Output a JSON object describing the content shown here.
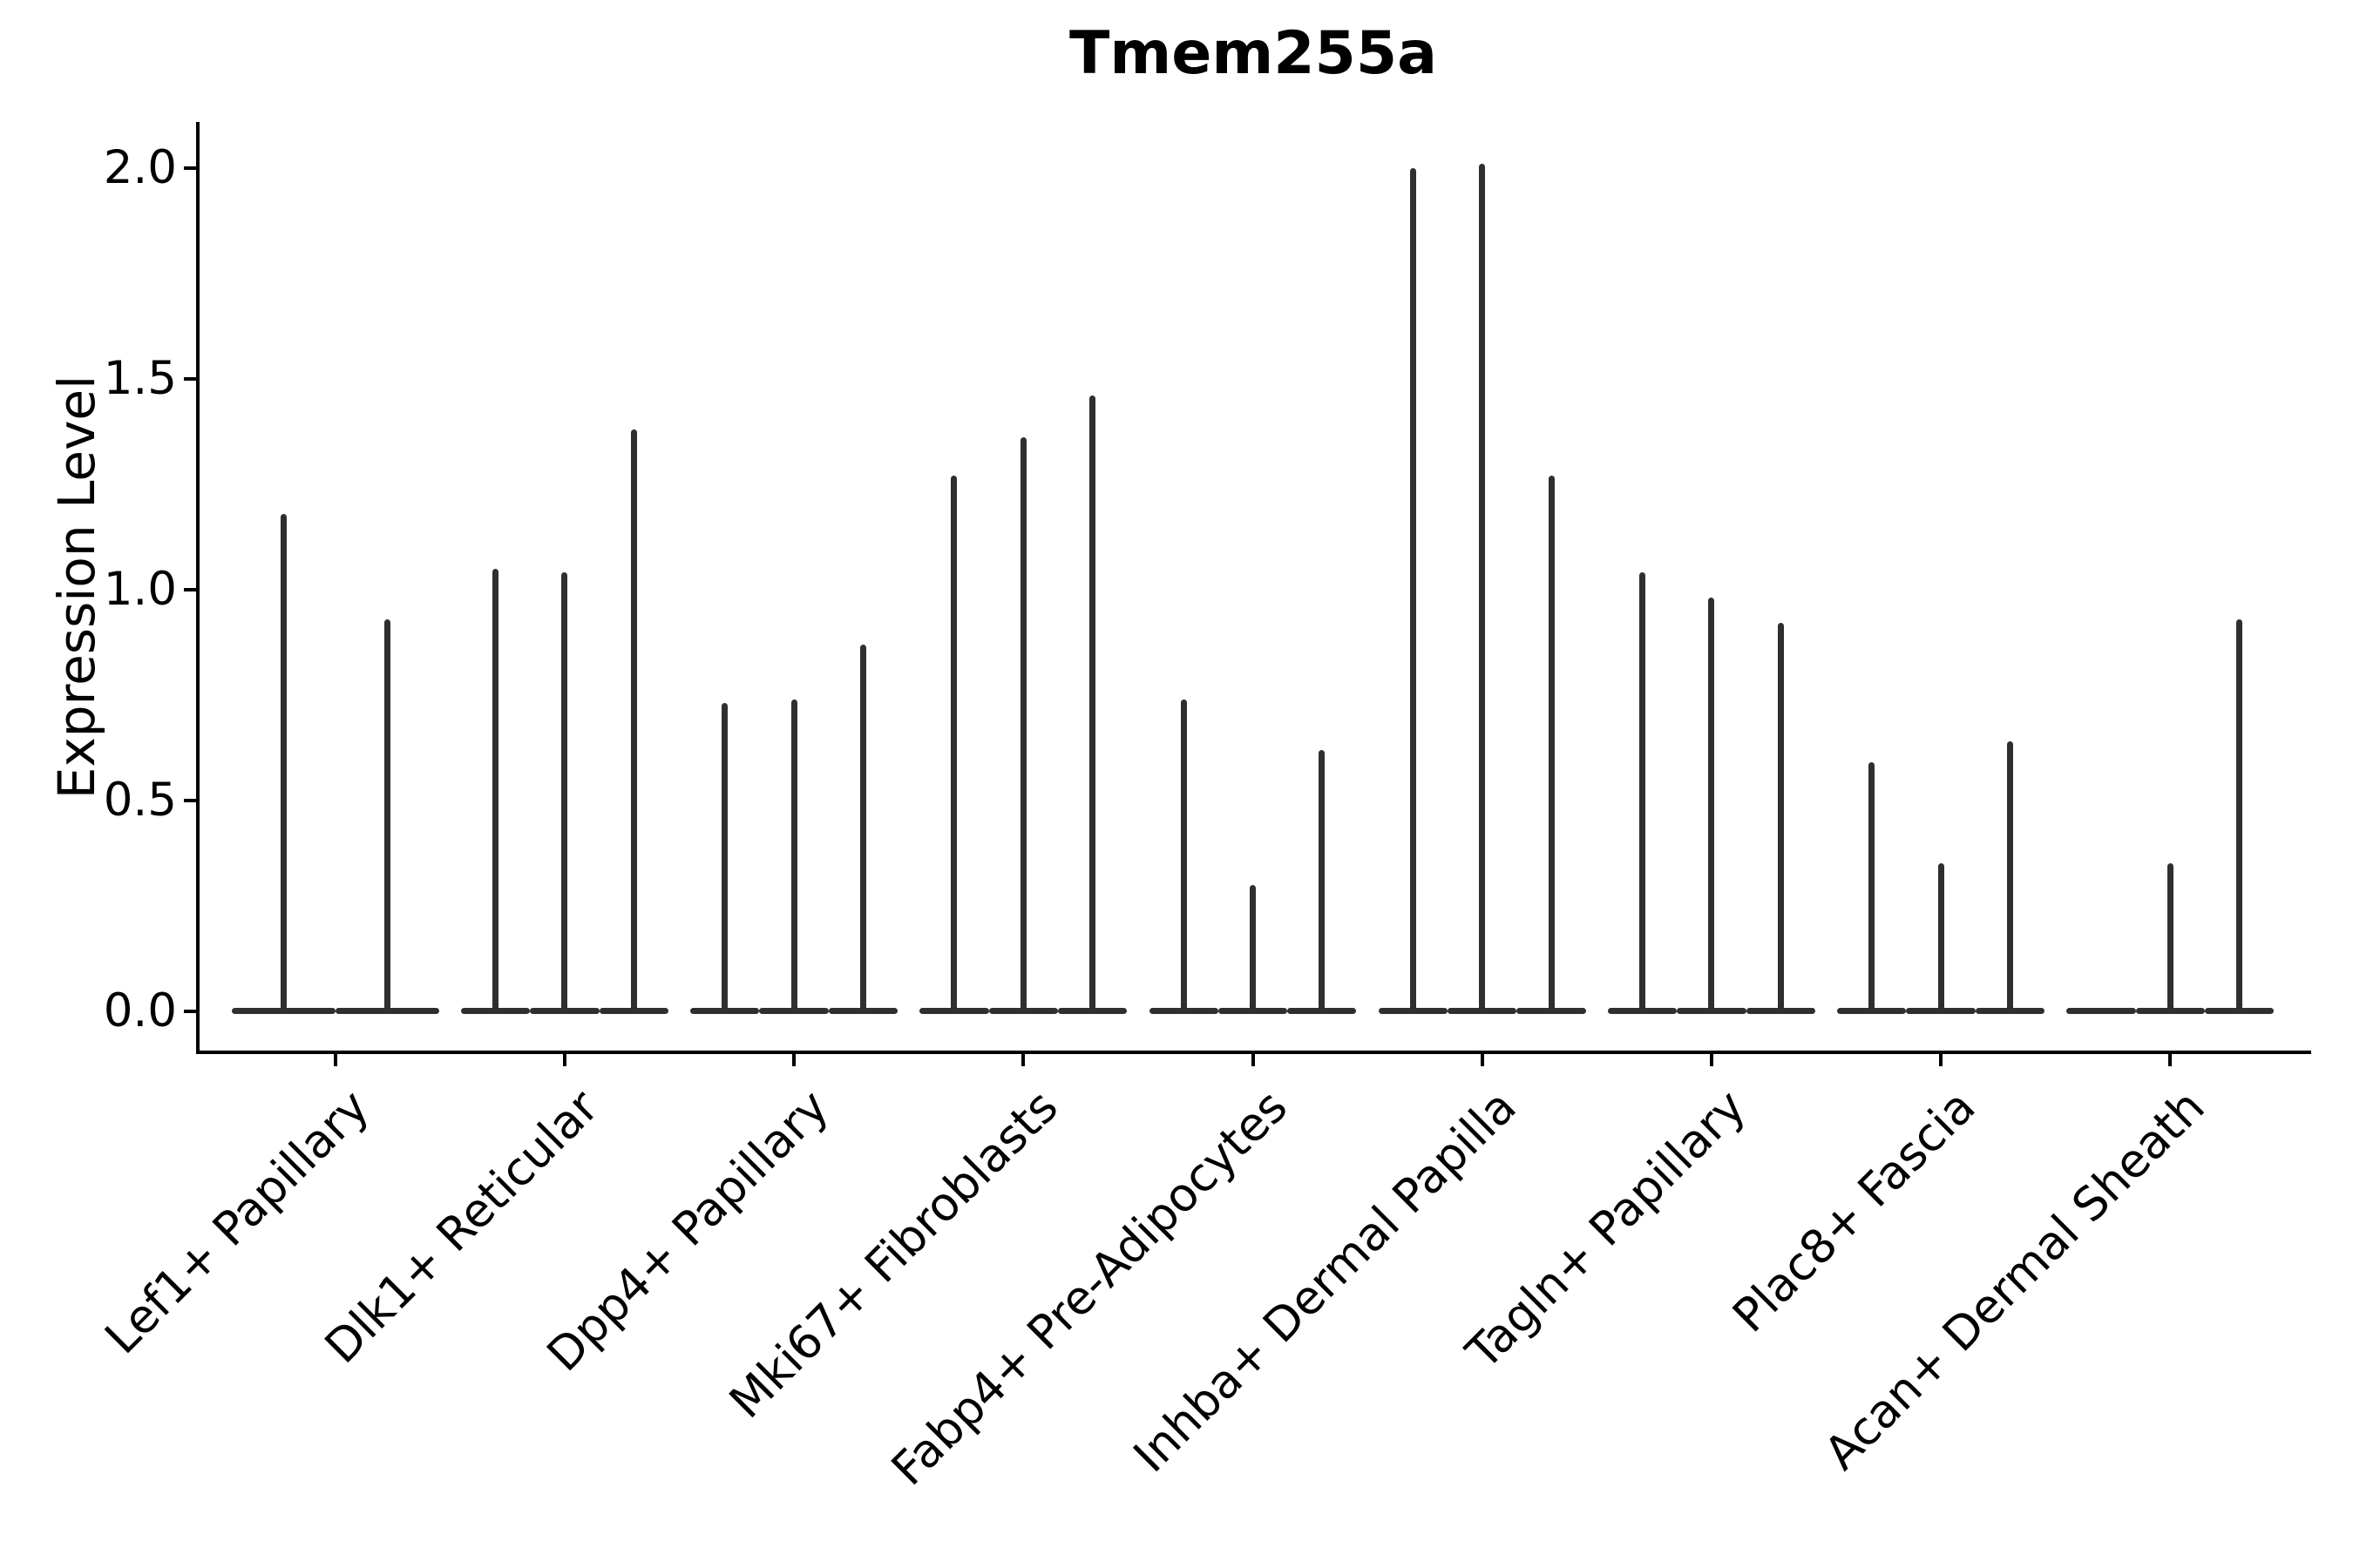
{
  "title": "Tmem255a",
  "y_axis": {
    "label": "Expression Level",
    "tick_labels": [
      "0.0",
      "0.5",
      "1.0",
      "1.5",
      "2.0"
    ]
  },
  "chart_data": {
    "type": "violin",
    "title": "Tmem255a",
    "xlabel": "",
    "ylabel": "Expression Level",
    "ylim": [
      -0.1,
      2.11
    ],
    "yticks": [
      0.0,
      0.5,
      1.0,
      1.5,
      2.0
    ],
    "grid": false,
    "legend": "none",
    "violin_color": "#2f2f2f",
    "axis_color": "#000000",
    "categories": [
      "Lef1+ Papillary",
      "Dlk1+ Reticular",
      "Dpp4+ Papillary",
      "Mki67+ Fibroblasts",
      "Fabp4+ Pre-Adipocytes",
      "Inhba+ Dermal Papilla",
      "Tagln+ Papillary",
      "Plac8+ Fascia",
      "Acan+ Dermal Sheath"
    ],
    "description": "Each category holds thin spike-like violins (most cells at 0 expression, flat wide base at 0, narrow spike to max expression). Spike value = max expression level per violin; null = completely flat violin (all zeros).",
    "groups": [
      {
        "label": "Lef1+ Papillary",
        "spike_maxima": [
          1.18,
          0.93
        ]
      },
      {
        "label": "Dlk1+ Reticular",
        "spike_maxima": [
          1.05,
          1.04,
          1.38
        ]
      },
      {
        "label": "Dpp4+ Papillary",
        "spike_maxima": [
          0.73,
          0.74,
          0.87
        ]
      },
      {
        "label": "Mki67+ Fibroblasts",
        "spike_maxima": [
          1.27,
          1.36,
          1.46
        ]
      },
      {
        "label": "Fabp4+ Pre-Adipocytes",
        "spike_maxima": [
          0.74,
          0.3,
          0.62
        ]
      },
      {
        "label": "Inhba+ Dermal Papilla",
        "spike_maxima": [
          2.0,
          2.01,
          1.27
        ]
      },
      {
        "label": "Tagln+ Papillary",
        "spike_maxima": [
          1.04,
          0.98,
          0.92
        ]
      },
      {
        "label": "Plac8+ Fascia",
        "spike_maxima": [
          0.59,
          0.35,
          0.64
        ]
      },
      {
        "label": "Acan+ Dermal Sheath",
        "spike_maxima": [
          null,
          0.35,
          0.93
        ]
      }
    ]
  }
}
